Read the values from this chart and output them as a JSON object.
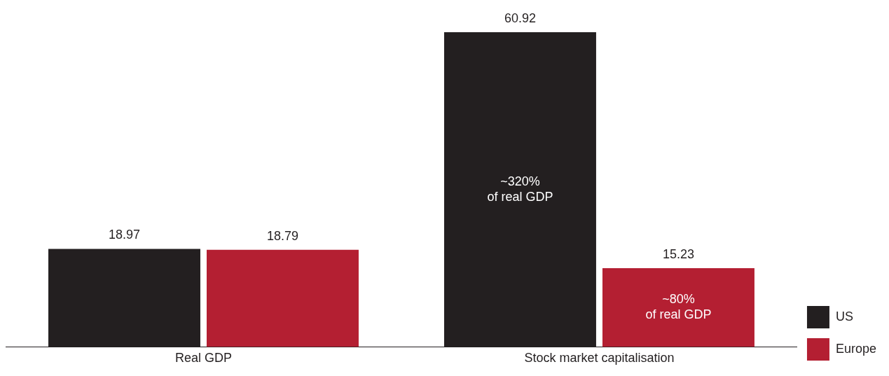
{
  "chart_data": {
    "type": "bar",
    "categories": [
      "Real GDP",
      "Stock market capitalisation"
    ],
    "series": [
      {
        "name": "US",
        "color": "#231f20",
        "values": [
          18.97,
          60.92
        ]
      },
      {
        "name": "Europe",
        "color": "#b41f32",
        "values": [
          18.79,
          15.23
        ]
      }
    ],
    "tick_labels": "x",
    "grid": false,
    "legend": "bottom right",
    "data_labels": true,
    "annotations": [
      "~320%\nof real GDP",
      "~80%\nof real GDP"
    ]
  }
}
